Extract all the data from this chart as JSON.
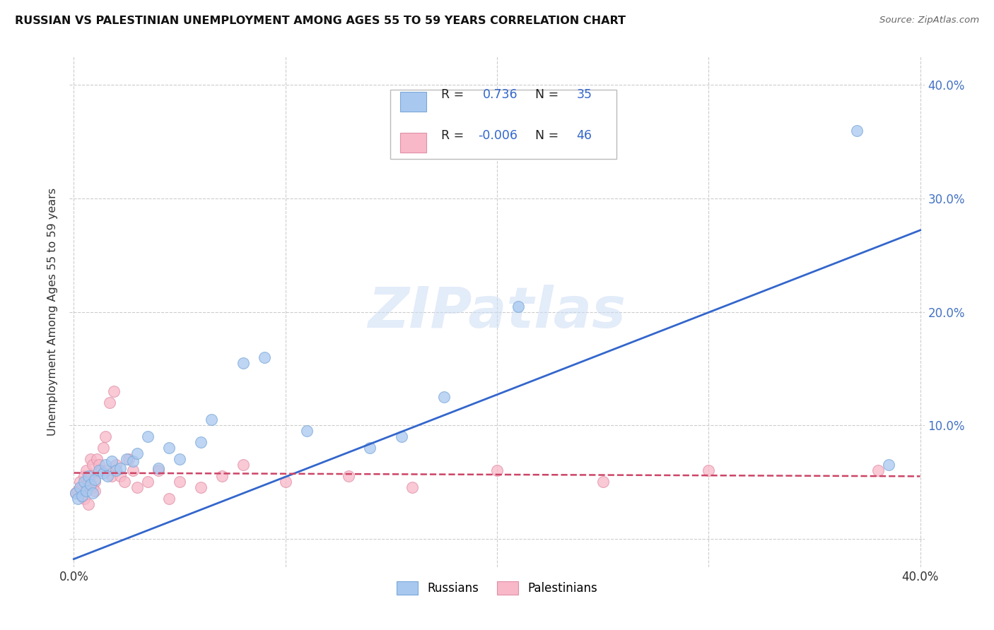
{
  "title": "RUSSIAN VS PALESTINIAN UNEMPLOYMENT AMONG AGES 55 TO 59 YEARS CORRELATION CHART",
  "source": "Source: ZipAtlas.com",
  "ylabel": "Unemployment Among Ages 55 to 59 years",
  "xlim": [
    -0.002,
    0.402
  ],
  "ylim": [
    -0.025,
    0.425
  ],
  "xticks": [
    0.0,
    0.1,
    0.2,
    0.3,
    0.4
  ],
  "yticks": [
    0.0,
    0.1,
    0.2,
    0.3,
    0.4
  ],
  "russian_color": "#a8c8f0",
  "russian_edge_color": "#7aa8d8",
  "palestinian_color": "#f8b8c8",
  "palestinian_edge_color": "#e090a8",
  "russian_line_color": "#3366cc",
  "palestinian_line_color": "#cc4466",
  "legend_R_russian": "0.736",
  "legend_N_russian": "35",
  "legend_R_palestinian": "-0.006",
  "legend_N_palestinian": "46",
  "watermark": "ZIPatlas",
  "grid_color": "#cccccc",
  "right_tick_color": "#4472c4",
  "text_color": "#333333",
  "russians_x": [
    0.001,
    0.002,
    0.003,
    0.004,
    0.005,
    0.006,
    0.007,
    0.008,
    0.009,
    0.01,
    0.012,
    0.014,
    0.015,
    0.016,
    0.018,
    0.02,
    0.022,
    0.025,
    0.028,
    0.03,
    0.035,
    0.04,
    0.045,
    0.05,
    0.06,
    0.065,
    0.08,
    0.09,
    0.11,
    0.14,
    0.155,
    0.175,
    0.21,
    0.37,
    0.385
  ],
  "russians_y": [
    0.04,
    0.035,
    0.045,
    0.038,
    0.05,
    0.042,
    0.055,
    0.048,
    0.04,
    0.052,
    0.06,
    0.058,
    0.065,
    0.055,
    0.068,
    0.06,
    0.062,
    0.07,
    0.068,
    0.075,
    0.09,
    0.062,
    0.08,
    0.07,
    0.085,
    0.105,
    0.155,
    0.16,
    0.095,
    0.08,
    0.09,
    0.125,
    0.205,
    0.36,
    0.065
  ],
  "palestinians_x": [
    0.001,
    0.002,
    0.003,
    0.004,
    0.004,
    0.005,
    0.005,
    0.006,
    0.006,
    0.007,
    0.007,
    0.008,
    0.008,
    0.009,
    0.009,
    0.01,
    0.01,
    0.011,
    0.012,
    0.013,
    0.014,
    0.015,
    0.016,
    0.017,
    0.018,
    0.019,
    0.02,
    0.022,
    0.024,
    0.026,
    0.028,
    0.03,
    0.035,
    0.04,
    0.045,
    0.05,
    0.06,
    0.07,
    0.08,
    0.1,
    0.13,
    0.16,
    0.2,
    0.25,
    0.3,
    0.38
  ],
  "palestinians_y": [
    0.04,
    0.042,
    0.05,
    0.045,
    0.038,
    0.055,
    0.035,
    0.048,
    0.06,
    0.052,
    0.03,
    0.055,
    0.07,
    0.045,
    0.065,
    0.05,
    0.042,
    0.07,
    0.065,
    0.06,
    0.08,
    0.09,
    0.06,
    0.12,
    0.055,
    0.13,
    0.065,
    0.055,
    0.05,
    0.07,
    0.06,
    0.045,
    0.05,
    0.06,
    0.035,
    0.05,
    0.045,
    0.055,
    0.065,
    0.05,
    0.055,
    0.045,
    0.06,
    0.05,
    0.06,
    0.06
  ],
  "russian_line_x0": 0.0,
  "russian_line_y0": -0.018,
  "russian_line_x1": 0.4,
  "russian_line_y1": 0.272,
  "palestinian_line_x0": 0.0,
  "palestinian_line_y0": 0.058,
  "palestinian_line_x1": 0.4,
  "palestinian_line_y1": 0.055
}
